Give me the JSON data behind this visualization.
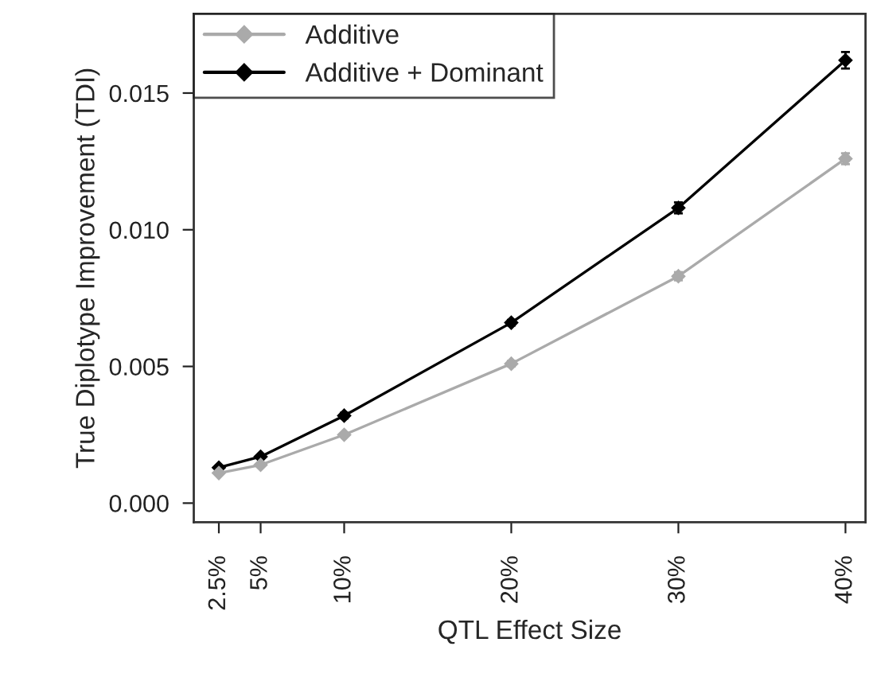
{
  "chart_data": {
    "type": "line",
    "xlabel": "QTL Effect Size",
    "ylabel": "True Diplotype Improvement (TDI)",
    "x": [
      2.5,
      5,
      10,
      20,
      30,
      40
    ],
    "series": [
      {
        "name": "Additive",
        "color": "#aaaaaa",
        "values": [
          0.0011,
          0.0014,
          0.0025,
          0.0051,
          0.0083,
          0.0126
        ],
        "errors": [
          5e-05,
          5e-05,
          5e-05,
          0.0001,
          0.00015,
          0.0002
        ]
      },
      {
        "name": "Additive + Dominant",
        "color": "#000000",
        "values": [
          0.0013,
          0.0017,
          0.0032,
          0.0066,
          0.0108,
          0.0162
        ],
        "errors": [
          5e-05,
          5e-05,
          0.0001,
          0.0001,
          0.0002,
          0.0003
        ]
      }
    ],
    "xlim": [
      1.0,
      41.2
    ],
    "ylim": [
      -0.0007,
      0.0179
    ],
    "xticks": [
      {
        "value": 2.5,
        "label": "2.5%"
      },
      {
        "value": 5,
        "label": "5%"
      },
      {
        "value": 10,
        "label": "10%"
      },
      {
        "value": 20,
        "label": "20%"
      },
      {
        "value": 30,
        "label": "30%"
      },
      {
        "value": 40,
        "label": "40%"
      }
    ],
    "yticks": [
      {
        "value": 0,
        "label": "0.000"
      },
      {
        "value": 0.005,
        "label": "0.005"
      },
      {
        "value": 0.01,
        "label": "0.010"
      },
      {
        "value": 0.015,
        "label": "0.015"
      }
    ],
    "grid": false,
    "legend": "top left",
    "marker": "diamond",
    "line_style": "solid"
  }
}
